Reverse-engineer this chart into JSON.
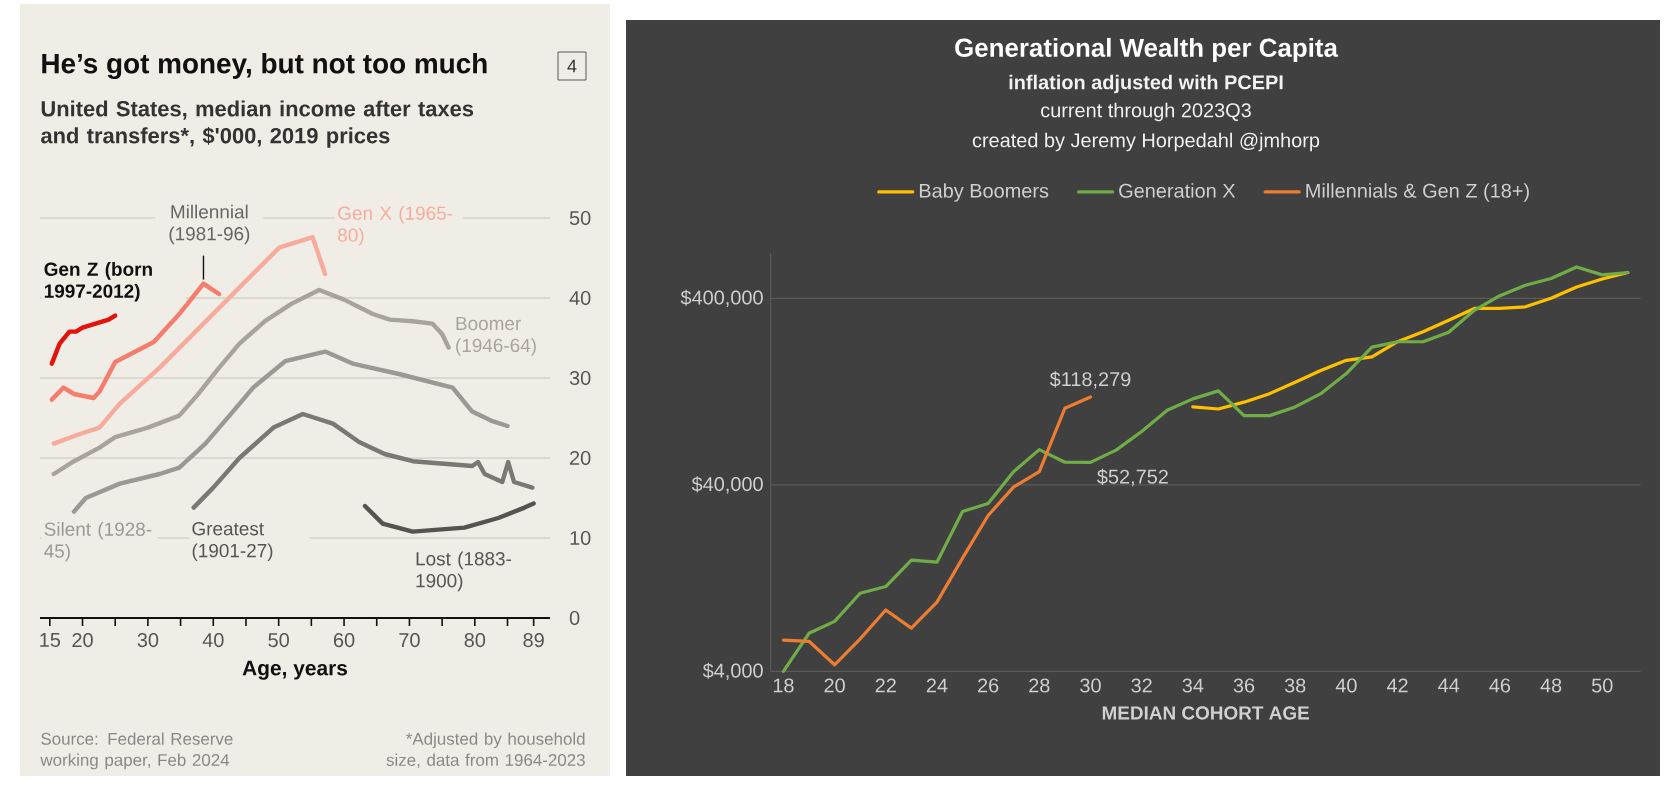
{
  "chart_data": [
    {
      "type": "line",
      "title": "He’s got money, but not too much",
      "subtitle": "United States, median income after taxes and transfers*, $'000, 2019 prices",
      "xlabel": "Age, years",
      "xlim": [
        13.5,
        91.5
      ],
      "ylim": [
        0,
        50
      ],
      "xticks": [
        15,
        20,
        {
          "value": 25,
          "label": null
        },
        30,
        {
          "value": 35,
          "label": null
        },
        40,
        {
          "value": 45,
          "label": null
        },
        50,
        {
          "value": 55,
          "label": null
        },
        60,
        {
          "value": 65,
          "label": null
        },
        70,
        {
          "value": 75,
          "label": null
        },
        80,
        {
          "value": 85,
          "label": null
        },
        89
      ],
      "yticks": [
        0,
        10,
        20,
        30,
        40,
        50
      ],
      "grid": "y",
      "annotations": [
        "4",
        "Source: Federal Reserve working paper, Feb 2024",
        "*Adjusted by household size, data from 1964-2023"
      ],
      "series": [
        {
          "name": "Gen Z (born 1997-2012)",
          "color": "#e3120b",
          "x": [
            15.3,
            16.5,
            18,
            19,
            20,
            22,
            24,
            25
          ],
          "values": [
            31.8,
            34.3,
            35.8,
            35.8,
            36.3,
            36.8,
            37.3,
            37.8
          ]
        },
        {
          "name": "Millennial (1981-96)",
          "color": "#f47d6b",
          "x": [
            15.3,
            17.1,
            18.7,
            21.7,
            22.6,
            25,
            30.9,
            34.8,
            38.5,
            39.4,
            40.9
          ],
          "values": [
            27.3,
            28.8,
            28,
            27.5,
            28.3,
            32,
            34.5,
            38,
            41.8,
            41.3,
            40.5
          ]
        },
        {
          "name": "Gen X (1965-80)",
          "color": "#f7ab9c",
          "x": [
            15.6,
            19.6,
            22.6,
            25.7,
            31.8,
            37.9,
            44,
            50.1,
            55.2,
            57.1
          ],
          "values": [
            21.8,
            23,
            23.8,
            26.8,
            31.3,
            36.3,
            41.3,
            46.3,
            47.6,
            43
          ]
        },
        {
          "name": "Boomer (1946-64)",
          "color": "#a8a49d",
          "x": [
            15.6,
            18.7,
            22.6,
            25,
            30,
            34.8,
            37.5,
            40.9,
            44,
            47.9,
            52,
            56.2,
            60,
            64.4,
            67,
            70.5,
            73.5,
            75,
            76
          ],
          "values": [
            18,
            19.6,
            21.3,
            22.6,
            23.8,
            25.3,
            27.8,
            31.3,
            34.3,
            37.1,
            39.3,
            41,
            39.8,
            38,
            37.3,
            37.1,
            36.8,
            35.5,
            33.8
          ]
        },
        {
          "name": "Silent (1928-45)",
          "color": "#9b9994",
          "x": [
            18.7,
            20.5,
            25.7,
            31.8,
            34.8,
            38.8,
            43,
            46.1,
            51,
            57.1,
            61.3,
            68.4,
            76.6,
            79.6,
            82.7,
            85
          ],
          "values": [
            13.3,
            15,
            16.8,
            18,
            18.8,
            21.8,
            25.8,
            28.8,
            32.1,
            33.3,
            31.8,
            30.5,
            28.8,
            25.8,
            24.6,
            24
          ]
        },
        {
          "name": "Greatest (1901-27)",
          "color": "#7a7874",
          "x": [
            37,
            40,
            44,
            49.2,
            53.7,
            58.3,
            62.3,
            66.2,
            70.5,
            79.6,
            80.5,
            81.5,
            84.2,
            85.1,
            86,
            88.8
          ],
          "values": [
            13.8,
            16.3,
            20,
            23.8,
            25.5,
            24.3,
            22,
            20.5,
            19.6,
            19,
            19.5,
            18,
            17,
            19.5,
            17,
            16.3
          ]
        },
        {
          "name": "Lost (1883-1900)",
          "color": "#555451",
          "x": [
            63.2,
            65.9,
            70.5,
            78.4,
            83.6,
            87.6,
            89
          ],
          "values": [
            14,
            11.8,
            10.8,
            11.3,
            12.5,
            13.8,
            14.3
          ]
        }
      ]
    },
    {
      "type": "line",
      "title": "Generational Wealth per Capita",
      "subtitle": "inflation adjusted with PCEPI",
      "xlabel": "MEDIAN COHORT AGE",
      "xlim": [
        17.5,
        51.5
      ],
      "ylim": [
        4000,
        700000
      ],
      "log": "y",
      "grid": "y",
      "legend": "top",
      "xticks": [
        18,
        20,
        22,
        24,
        26,
        28,
        30,
        32,
        34,
        36,
        38,
        40,
        42,
        44,
        46,
        48,
        50
      ],
      "yticks": [
        {
          "value": 4000,
          "label": "$4,000"
        },
        {
          "value": 40000,
          "label": "$40,000"
        },
        {
          "value": 400000,
          "label": "$400,000"
        }
      ],
      "annotations": [
        "current through 2023Q3",
        "created by Jeremy Horpedahl @jmhorp",
        {
          "text": "$118,279",
          "x": 30,
          "y": 118279
        },
        {
          "text": "$52,752",
          "x": 30,
          "y": 52752
        }
      ],
      "series": [
        {
          "name": "Baby Boomers",
          "color": "#ffc000",
          "x": [
            34,
            35,
            36,
            37,
            38,
            39,
            40,
            41,
            42,
            43,
            44,
            45,
            46,
            47,
            48,
            49,
            50,
            51
          ],
          "values": [
            104700,
            102000,
            111000,
            123300,
            142000,
            164000,
            186000,
            194000,
            234000,
            265000,
            305000,
            353000,
            353000,
            360000,
            400000,
            460000,
            508000,
            550000
          ]
        },
        {
          "name": "Generation X",
          "color": "#70ad47",
          "x": [
            18,
            19,
            20,
            21,
            22,
            23,
            24,
            25,
            26,
            27,
            28,
            29,
            30,
            31,
            32,
            33,
            34,
            35,
            36,
            37,
            38,
            39,
            40,
            41,
            42,
            43,
            44,
            45,
            46,
            47,
            48,
            49,
            50,
            51
          ],
          "values": [
            4000,
            6400,
            7420,
            10500,
            11400,
            15800,
            15400,
            28800,
            31800,
            47100,
            61800,
            52900,
            52752,
            61400,
            77300,
            100400,
            115600,
            127600,
            94000,
            94000,
            104700,
            123300,
            158000,
            219000,
            234000,
            234000,
            263000,
            345000,
            413000,
            470000,
            511000,
            589000,
            534000,
            550000
          ]
        },
        {
          "name": "Millennials & Gen Z (18+)",
          "color": "#ed7d31",
          "x": [
            18,
            19,
            20,
            21,
            22,
            23,
            24,
            25,
            26,
            27,
            28,
            29,
            30
          ],
          "values": [
            5890,
            5800,
            4340,
            5980,
            8530,
            6820,
            9400,
            16200,
            27400,
            39000,
            47100,
            103000,
            118279
          ]
        }
      ]
    }
  ]
}
